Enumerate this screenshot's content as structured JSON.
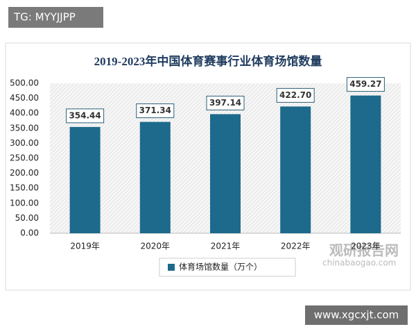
{
  "chart_data": {
    "type": "bar",
    "title": "2019-2023年中国体育赛事行业体育场馆数量",
    "categories": [
      "2019年",
      "2020年",
      "2021年",
      "2022年",
      "2023年"
    ],
    "series": [
      {
        "name": "体育场馆数量（万个）",
        "color": "#1d6a8c",
        "values": [
          354.44,
          371.34,
          397.14,
          422.7,
          459.27
        ],
        "value_labels": [
          "354.44",
          "371.34",
          "397.14",
          "422.70",
          "459.27"
        ]
      }
    ],
    "ylim": [
      0,
      500
    ],
    "yticks": [
      {
        "value": 0,
        "label": "0.00"
      },
      {
        "value": 50,
        "label": "50.00"
      },
      {
        "value": 100,
        "label": "100.00"
      },
      {
        "value": 150,
        "label": "150.00"
      },
      {
        "value": 200,
        "label": "200.00"
      },
      {
        "value": 250,
        "label": "250.00"
      },
      {
        "value": 300,
        "label": "300.00"
      },
      {
        "value": 350,
        "label": "350.00"
      },
      {
        "value": 400,
        "label": "400.00"
      },
      {
        "value": 450,
        "label": "450.00"
      },
      {
        "value": 500,
        "label": "500.00"
      }
    ],
    "legend": "bottom"
  },
  "watermarks": [
    "TG: MYYJJPP",
    "观研报告网",
    "chinabaogao.com",
    "www.xgcxjt.com"
  ]
}
